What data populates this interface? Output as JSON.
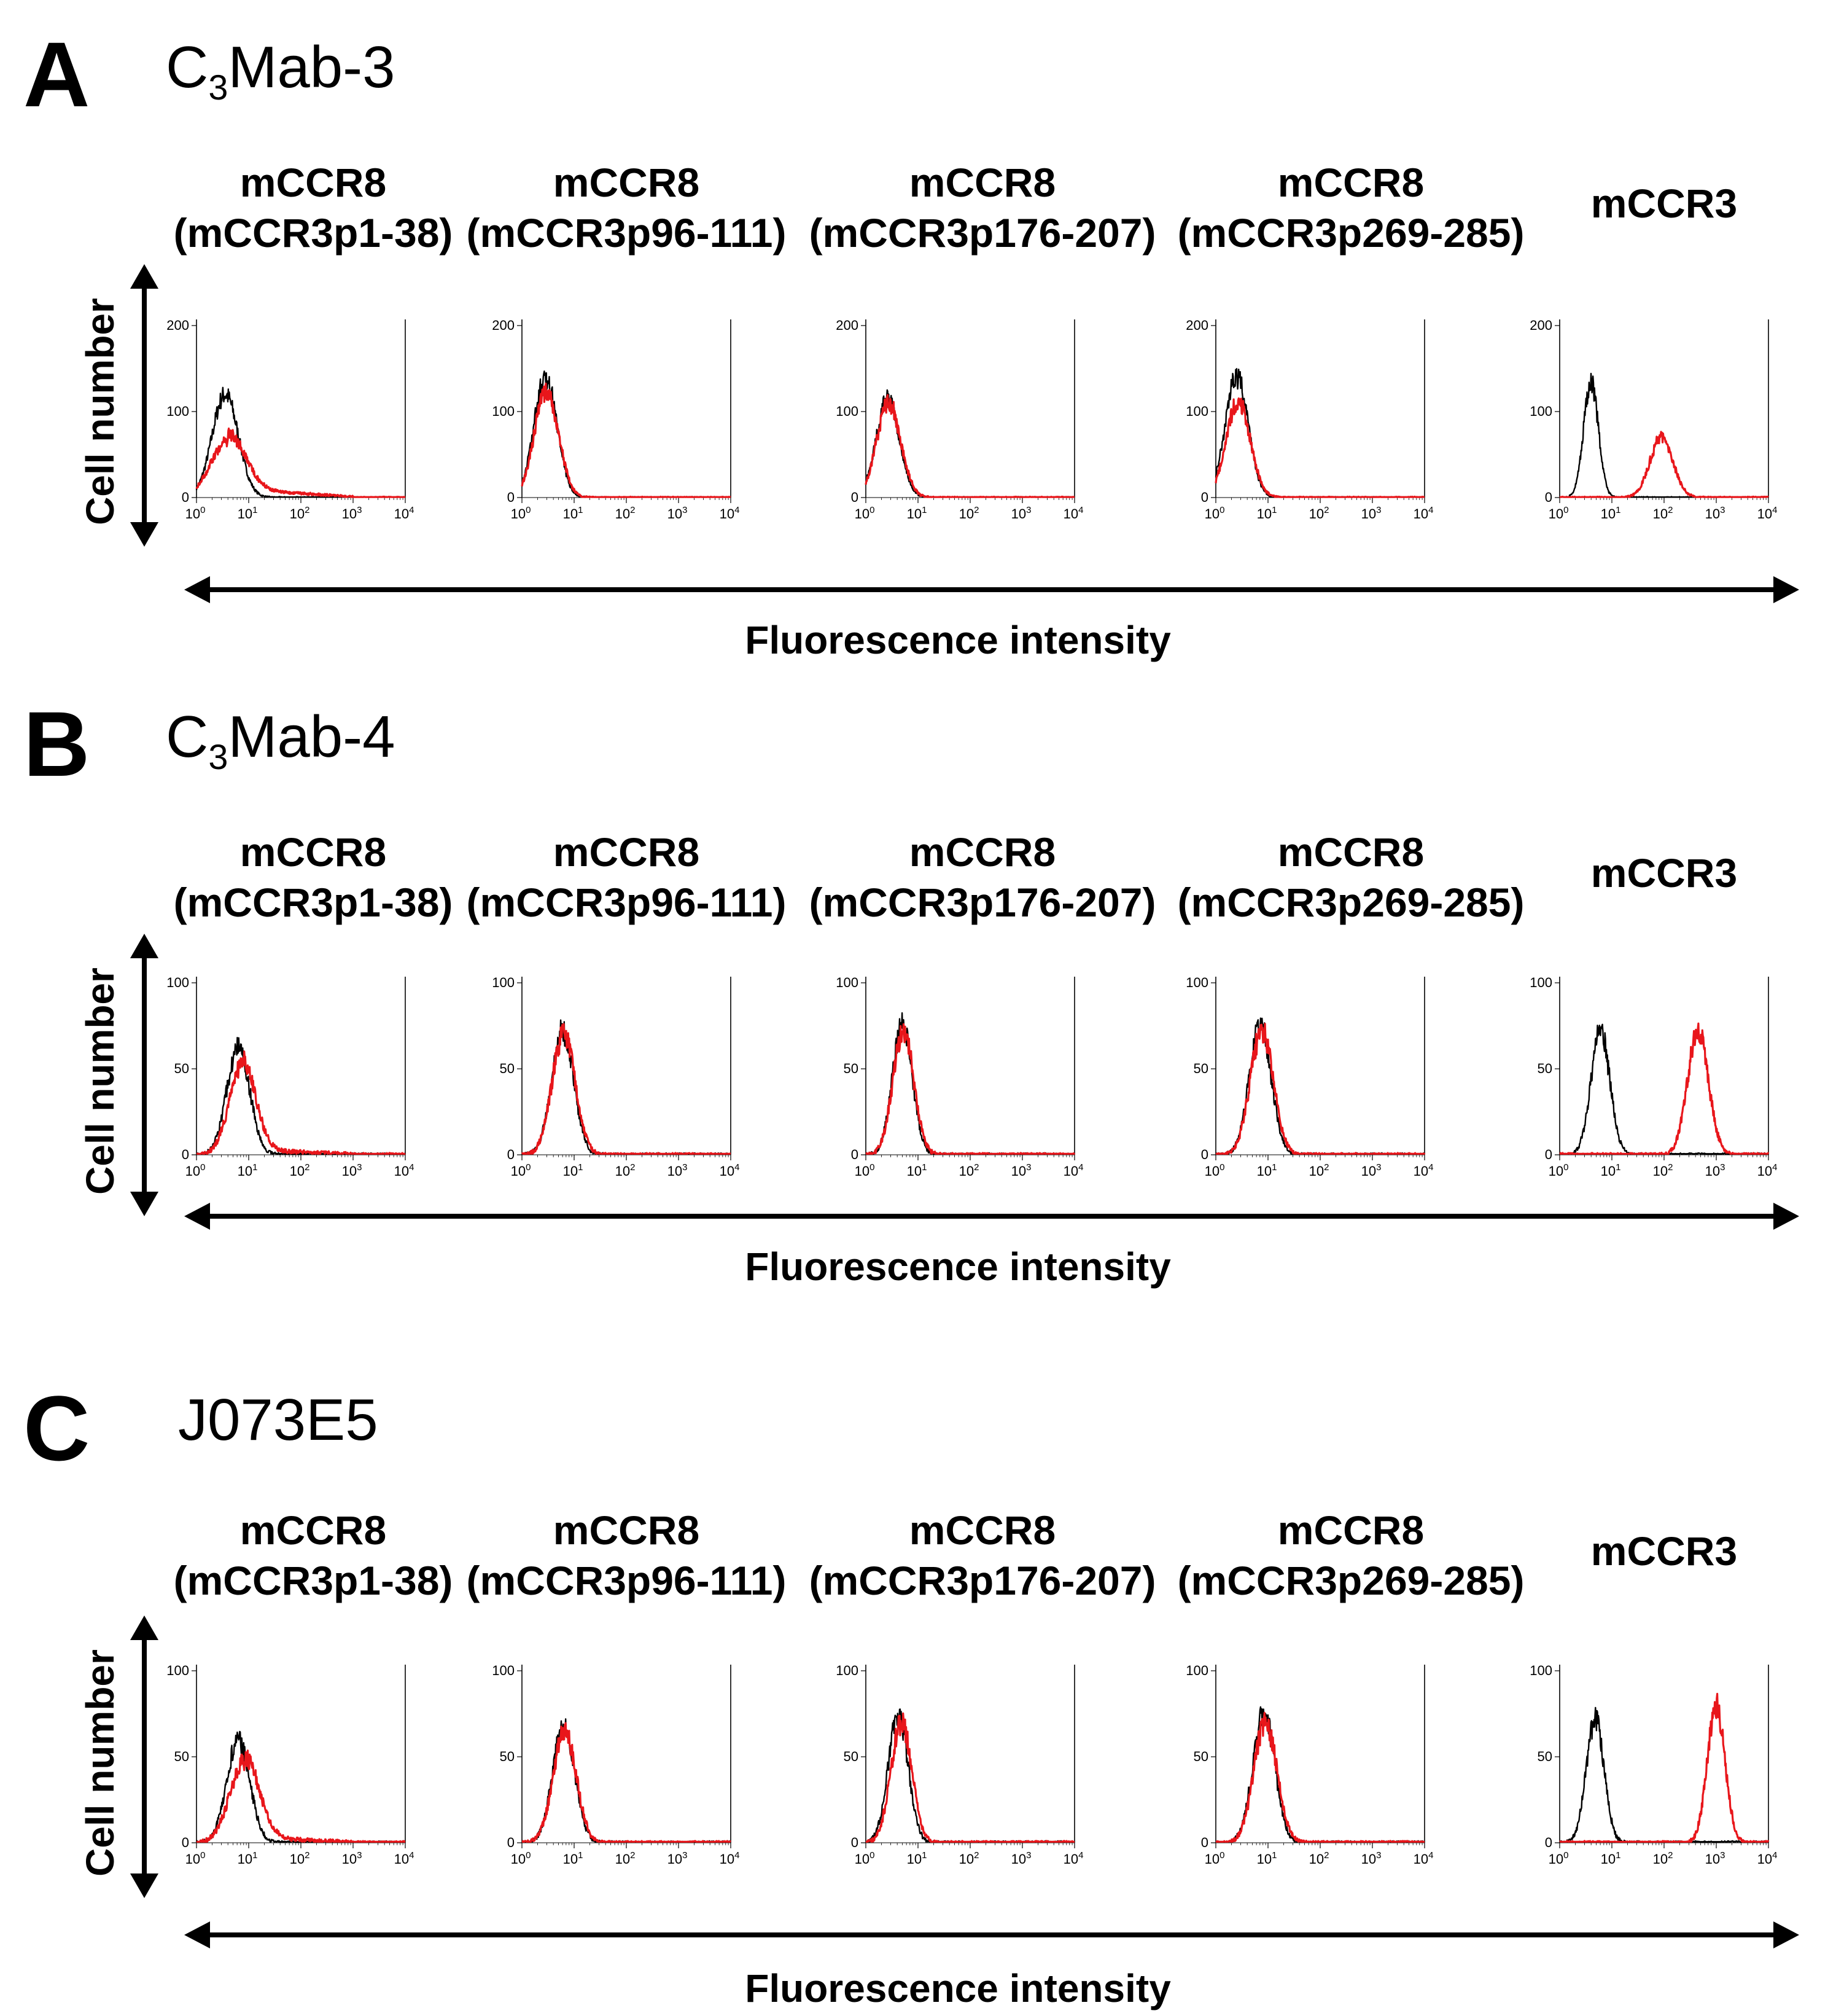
{
  "colors": {
    "control": "#000000",
    "antibody": "#e8161b"
  },
  "x_axis_label": "Fluorescence intensity",
  "y_axis_label": "Cell number",
  "x_tick_labels": [
    {
      "base": "10",
      "exp": "0"
    },
    {
      "base": "10",
      "exp": "1"
    },
    {
      "base": "10",
      "exp": "2"
    },
    {
      "base": "10",
      "exp": "3"
    },
    {
      "base": "10",
      "exp": "4"
    }
  ],
  "column_titles": [
    {
      "line1": "mCCR8",
      "line2": "(mCCR3p1-38)"
    },
    {
      "line1": "mCCR8",
      "line2": "(mCCR3p96-111)"
    },
    {
      "line1": "mCCR8",
      "line2": "(mCCR3p176-207)"
    },
    {
      "line1": "mCCR8",
      "line2": "(mCCR3p269-285)"
    },
    {
      "line1": "mCCR3",
      "line2": ""
    }
  ],
  "panels": [
    {
      "letter": "A",
      "antibody_main": "C",
      "antibody_sub": "3",
      "antibody_rest": "Mab-3"
    },
    {
      "letter": "B",
      "antibody_main": "C",
      "antibody_sub": "3",
      "antibody_rest": "Mab-4"
    },
    {
      "letter": "C",
      "antibody_main": "J073E5",
      "antibody_sub": "",
      "antibody_rest": ""
    }
  ],
  "chart_data": [
    {
      "panel": "A",
      "type": "line",
      "x_scale": "log",
      "xlim": [
        1,
        10000
      ],
      "xlabel": "Fluorescence intensity",
      "ylabel": "Cell number",
      "y_ticks": [
        "0",
        "100",
        "200"
      ],
      "ylim": [
        0,
        200
      ],
      "histograms": [
        {
          "title": "mCCR8 (mCCR3p1-38)",
          "series": [
            {
              "name": "control",
              "peak_log": 0.55,
              "width": 0.25,
              "height": 120
            },
            {
              "name": "antibody",
              "peak_log": 0.6,
              "width": 0.33,
              "height": 65,
              "tail_level": 10,
              "tail_end_log": 3.0
            }
          ]
        },
        {
          "title": "mCCR8 (mCCR3p96-111)",
          "series": [
            {
              "name": "control",
              "peak_log": 0.45,
              "width": 0.22,
              "height": 140
            },
            {
              "name": "antibody",
              "peak_log": 0.47,
              "width": 0.23,
              "height": 125
            }
          ]
        },
        {
          "title": "mCCR8 (mCCR3p176-207)",
          "series": [
            {
              "name": "control",
              "peak_log": 0.42,
              "width": 0.22,
              "height": 115
            },
            {
              "name": "antibody",
              "peak_log": 0.44,
              "width": 0.23,
              "height": 110
            }
          ]
        },
        {
          "title": "mCCR8 (mCCR3p269-285)",
          "series": [
            {
              "name": "control",
              "peak_log": 0.4,
              "width": 0.22,
              "height": 140
            },
            {
              "name": "antibody",
              "peak_log": 0.43,
              "width": 0.23,
              "height": 112
            }
          ]
        },
        {
          "title": "mCCR3",
          "series": [
            {
              "name": "control",
              "peak_log": 0.6,
              "width": 0.14,
              "height": 135
            },
            {
              "name": "antibody",
              "peak_log": 1.95,
              "width": 0.22,
              "height": 70
            }
          ]
        }
      ]
    },
    {
      "panel": "B",
      "type": "line",
      "x_scale": "log",
      "xlim": [
        1,
        10000
      ],
      "xlabel": "Fluorescence intensity",
      "ylabel": "Cell number",
      "y_ticks": [
        "0",
        "50",
        "100"
      ],
      "ylim": [
        0,
        100
      ],
      "histograms": [
        {
          "title": "mCCR8 (mCCR3p1-38)",
          "series": [
            {
              "name": "control",
              "peak_log": 0.8,
              "width": 0.22,
              "height": 62
            },
            {
              "name": "antibody",
              "peak_log": 0.88,
              "width": 0.25,
              "height": 52,
              "tail_level": 3,
              "tail_end_log": 3.0
            }
          ]
        },
        {
          "title": "mCCR8 (mCCR3p96-111)",
          "series": [
            {
              "name": "control",
              "peak_log": 0.78,
              "width": 0.21,
              "height": 72
            },
            {
              "name": "antibody",
              "peak_log": 0.8,
              "width": 0.22,
              "height": 70
            }
          ]
        },
        {
          "title": "mCCR8 (mCCR3p176-207)",
          "series": [
            {
              "name": "control",
              "peak_log": 0.7,
              "width": 0.19,
              "height": 75
            },
            {
              "name": "antibody",
              "peak_log": 0.72,
              "width": 0.2,
              "height": 72
            }
          ]
        },
        {
          "title": "mCCR8 (mCCR3p269-285)",
          "series": [
            {
              "name": "control",
              "peak_log": 0.85,
              "width": 0.21,
              "height": 75
            },
            {
              "name": "antibody",
              "peak_log": 0.88,
              "width": 0.22,
              "height": 72
            }
          ]
        },
        {
          "title": "mCCR3",
          "series": [
            {
              "name": "control",
              "peak_log": 0.78,
              "width": 0.18,
              "height": 72
            },
            {
              "name": "antibody",
              "peak_log": 2.65,
              "width": 0.2,
              "height": 72
            }
          ]
        }
      ]
    },
    {
      "panel": "C",
      "type": "line",
      "x_scale": "log",
      "xlim": [
        1,
        10000
      ],
      "xlabel": "Fluorescence intensity",
      "ylabel": "Cell number",
      "y_ticks": [
        "0",
        "50",
        "100"
      ],
      "ylim": [
        0,
        100
      ],
      "histograms": [
        {
          "title": "mCCR8 (mCCR3p1-38)",
          "series": [
            {
              "name": "control",
              "peak_log": 0.8,
              "width": 0.22,
              "height": 60
            },
            {
              "name": "antibody",
              "peak_log": 0.92,
              "width": 0.28,
              "height": 47,
              "tail_level": 3,
              "tail_end_log": 3.0
            }
          ]
        },
        {
          "title": "mCCR8 (mCCR3p96-111)",
          "series": [
            {
              "name": "control",
              "peak_log": 0.8,
              "width": 0.21,
              "height": 68
            },
            {
              "name": "antibody",
              "peak_log": 0.82,
              "width": 0.22,
              "height": 65
            }
          ]
        },
        {
          "title": "mCCR8 (mCCR3p176-207)",
          "series": [
            {
              "name": "control",
              "peak_log": 0.62,
              "width": 0.19,
              "height": 75
            },
            {
              "name": "antibody",
              "peak_log": 0.68,
              "width": 0.2,
              "height": 70
            }
          ]
        },
        {
          "title": "mCCR8 (mCCR3p269-285)",
          "series": [
            {
              "name": "control",
              "peak_log": 0.92,
              "width": 0.21,
              "height": 75
            },
            {
              "name": "antibody",
              "peak_log": 0.95,
              "width": 0.22,
              "height": 70
            }
          ]
        },
        {
          "title": "mCCR3",
          "series": [
            {
              "name": "control",
              "peak_log": 0.68,
              "width": 0.17,
              "height": 72
            },
            {
              "name": "antibody",
              "peak_log": 3.0,
              "width": 0.17,
              "height": 80
            }
          ]
        }
      ]
    }
  ]
}
